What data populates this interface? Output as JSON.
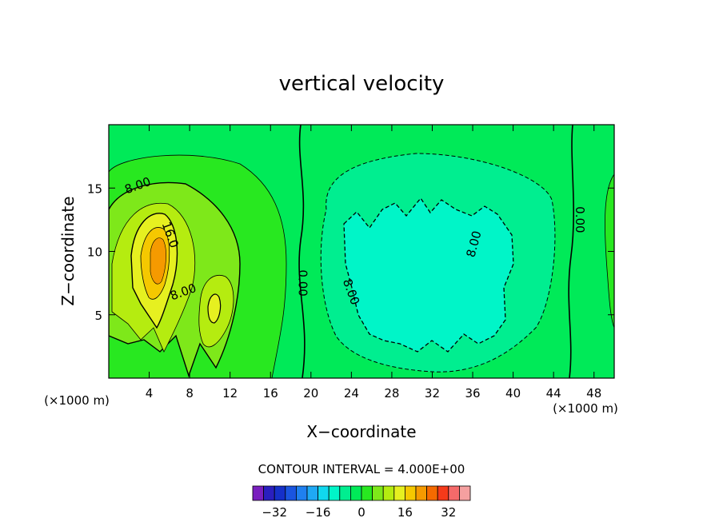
{
  "chart_data": {
    "type": "heatmap",
    "title": "vertical velocity",
    "xlabel": "X−coordinate",
    "ylabel": "Z−coordinate",
    "x_unit_left": "(×1000 m)",
    "x_unit_right": "(×1000 m)",
    "xlim": [
      0,
      50
    ],
    "ylim": [
      0,
      20
    ],
    "x_ticks": [
      4,
      8,
      12,
      16,
      20,
      24,
      28,
      32,
      36,
      40,
      44,
      48
    ],
    "y_ticks": [
      5,
      10,
      15
    ],
    "contour_interval_label": "CONTOUR INTERVAL = 4.000E+00",
    "contour_labels": [
      {
        "text": "8.00",
        "x": 3.0,
        "y": 14.9
      },
      {
        "text": "16.0",
        "x": 5.7,
        "y": 11.2
      },
      {
        "text": "8.00",
        "x": 7.5,
        "y": 6.5
      },
      {
        "text": "0.00",
        "x": 18.8,
        "y": 7.5
      },
      {
        "text": "8.00",
        "x": 23.6,
        "y": 6.7
      },
      {
        "text": "8.00",
        "x": 36.5,
        "y": 10.5
      },
      {
        "text": "0.00",
        "x": 46.2,
        "y": 12.5
      }
    ],
    "color_scale": {
      "levels": [
        -36,
        -32,
        -28,
        -24,
        -20,
        -16,
        -12,
        -8,
        -4,
        0,
        4,
        8,
        12,
        16,
        20,
        24,
        28,
        32,
        36
      ],
      "colors": [
        "#7a1fbf",
        "#2a1fbf",
        "#1530c9",
        "#1a55e0",
        "#1f80f0",
        "#1fa8f5",
        "#10d8ef",
        "#00f5c8",
        "#00ee90",
        "#00ea58",
        "#28e820",
        "#7ee81a",
        "#b5ec10",
        "#e6f020",
        "#f5c800",
        "#f59a00",
        "#f56a00",
        "#f53a1a",
        "#f56a6a",
        "#f5a0a0"
      ],
      "tick_labels": [
        -32,
        -16,
        0,
        16,
        32
      ]
    },
    "regions": [
      {
        "name": "background-zero",
        "level": 0
      },
      {
        "name": "positive-left-outer",
        "level": 4
      },
      {
        "name": "positive-left-8",
        "level": 8
      },
      {
        "name": "positive-left-12",
        "level": 12
      },
      {
        "name": "positive-left-16",
        "level": 16
      },
      {
        "name": "positive-left-20",
        "level": 20
      },
      {
        "name": "positive-mid-12",
        "level": 12
      },
      {
        "name": "negative-outer",
        "level": -4
      },
      {
        "name": "negative-inner",
        "level": -8
      }
    ]
  }
}
